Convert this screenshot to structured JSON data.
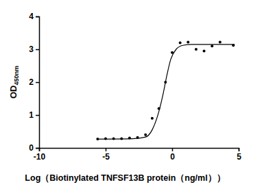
{
  "chart_data": {
    "type": "scatter",
    "x_label": "Log（Biotinylated TNFSF13B protein（ng/ml））",
    "y_label": "OD450nm",
    "xlim": [
      -10,
      5
    ],
    "xticks": [
      -10,
      -5,
      0,
      5
    ],
    "ylim": [
      0,
      4
    ],
    "yticks": [
      0,
      1,
      2,
      3,
      4
    ],
    "series": [
      {
        "type": "scatter",
        "marker": "circle",
        "color": "#000000",
        "x": [
          -5.6,
          -5.0,
          -4.4,
          -3.8,
          -3.2,
          -2.6,
          -2.0,
          -1.5,
          -1.0,
          -0.5,
          0.0,
          0.6,
          1.2,
          1.8,
          2.4,
          3.0,
          3.6,
          4.6
        ],
        "values": [
          0.27,
          0.28,
          0.28,
          0.28,
          0.3,
          0.32,
          0.4,
          0.9,
          1.2,
          2.0,
          2.9,
          3.2,
          3.22,
          3.0,
          2.95,
          3.1,
          3.22,
          3.12
        ]
      },
      {
        "type": "line",
        "line_style": "solid",
        "color": "#000000",
        "x": [
          -5.6,
          -3.0,
          -2.0,
          -1.5,
          -1.0,
          -0.7,
          -0.4,
          -0.1,
          0.3,
          0.8,
          1.5,
          4.7
        ],
        "values": [
          0.27,
          0.28,
          0.33,
          0.55,
          1.1,
          1.6,
          2.2,
          2.7,
          3.0,
          3.12,
          3.15,
          3.15
        ]
      }
    ]
  }
}
